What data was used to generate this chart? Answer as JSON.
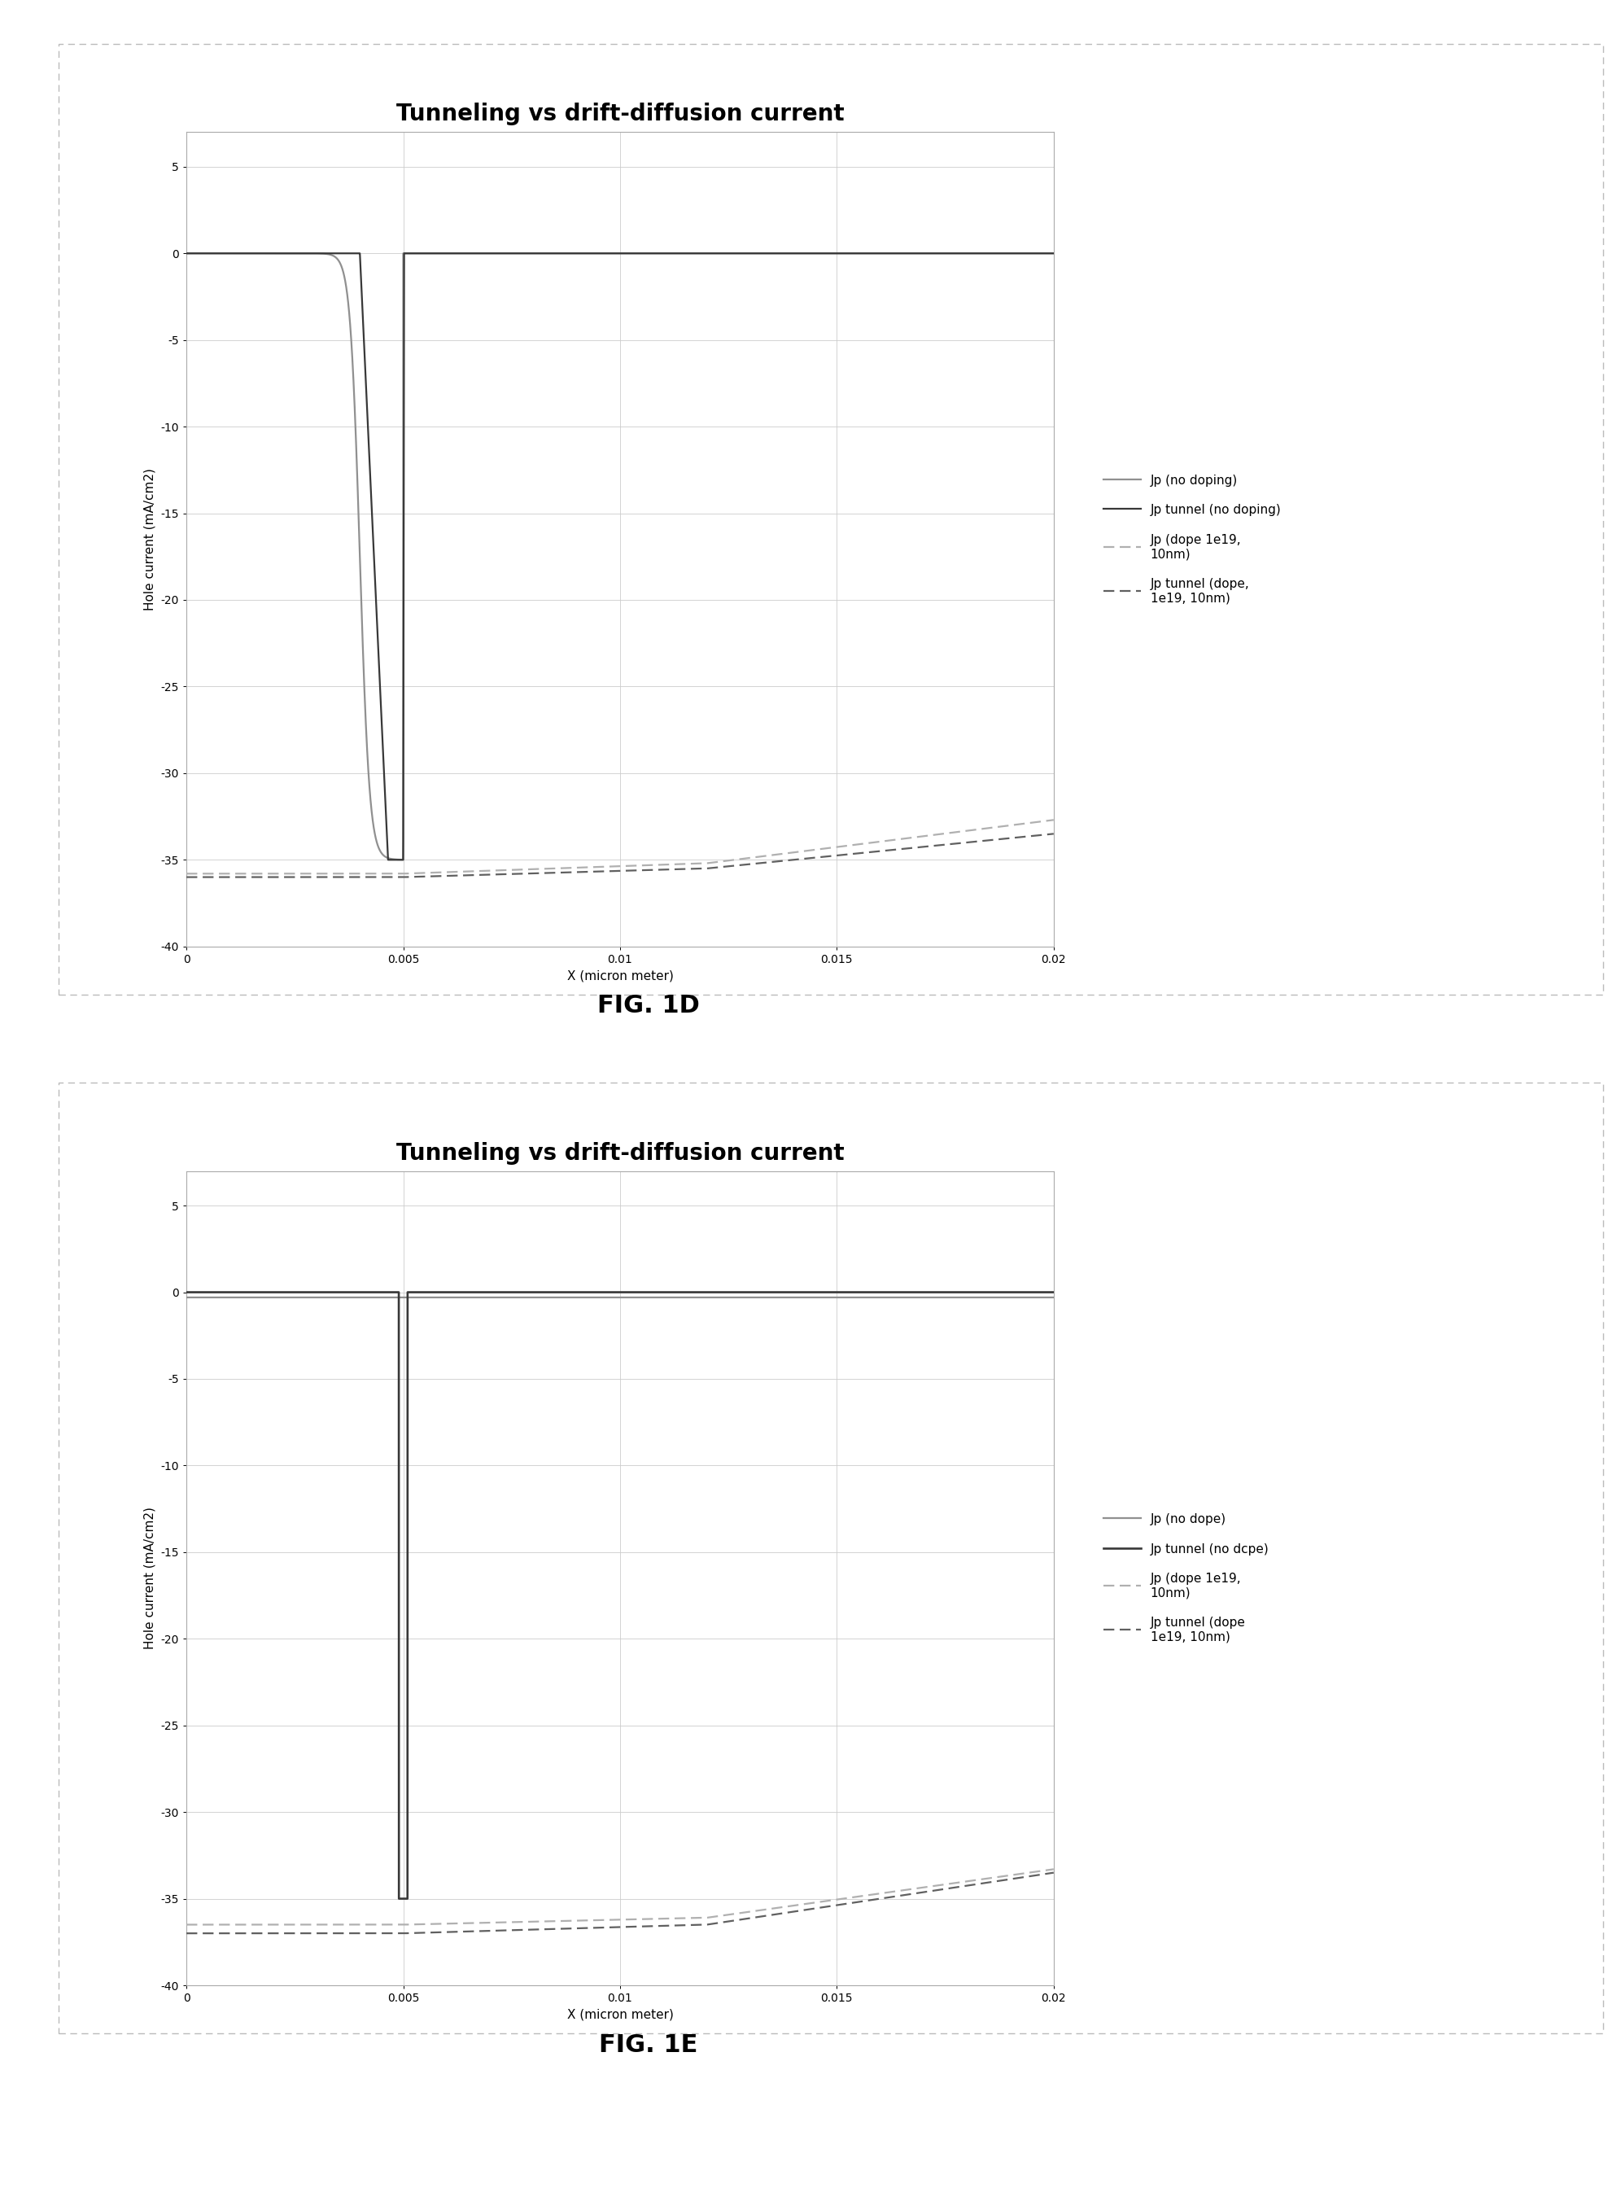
{
  "title": "Tunneling vs drift-diffusion current",
  "xlabel": "X (micron meter)",
  "ylabel": "Hole current (mA/cm2)",
  "xlim": [
    0,
    0.02
  ],
  "ylim": [
    -40,
    7
  ],
  "yticks": [
    5,
    0,
    -5,
    -10,
    -15,
    -20,
    -25,
    -30,
    -35,
    -40
  ],
  "xticks": [
    0,
    0.005,
    0.01,
    0.015,
    0.02
  ],
  "xticklabels": [
    "0",
    "0.005",
    "0.01",
    "0.015",
    "0.02"
  ],
  "fig1d_caption": "FIG. 1D",
  "fig1e_caption": "FIG. 1E",
  "legend1d": [
    "Jp (no doping)",
    "Jp tunnel (no doping)",
    "Jp (dope 1e19,\n10nm)",
    "Jp tunnel (dope,\n1e19, 10nm)"
  ],
  "legend1e": [
    "Jp (no dope)",
    "Jp tunnel (no dcpe)",
    "Jp (dope 1e19,\n10nm)",
    "Jp tunnel (dope\n1e19, 10nm)"
  ],
  "c_gray": "#909090",
  "c_dark": "#383838",
  "c_lgray_dash": "#b0b0b0",
  "c_mgray_dash": "#606060",
  "border_color": "#bbbbbb",
  "grid_color": "#cccccc"
}
